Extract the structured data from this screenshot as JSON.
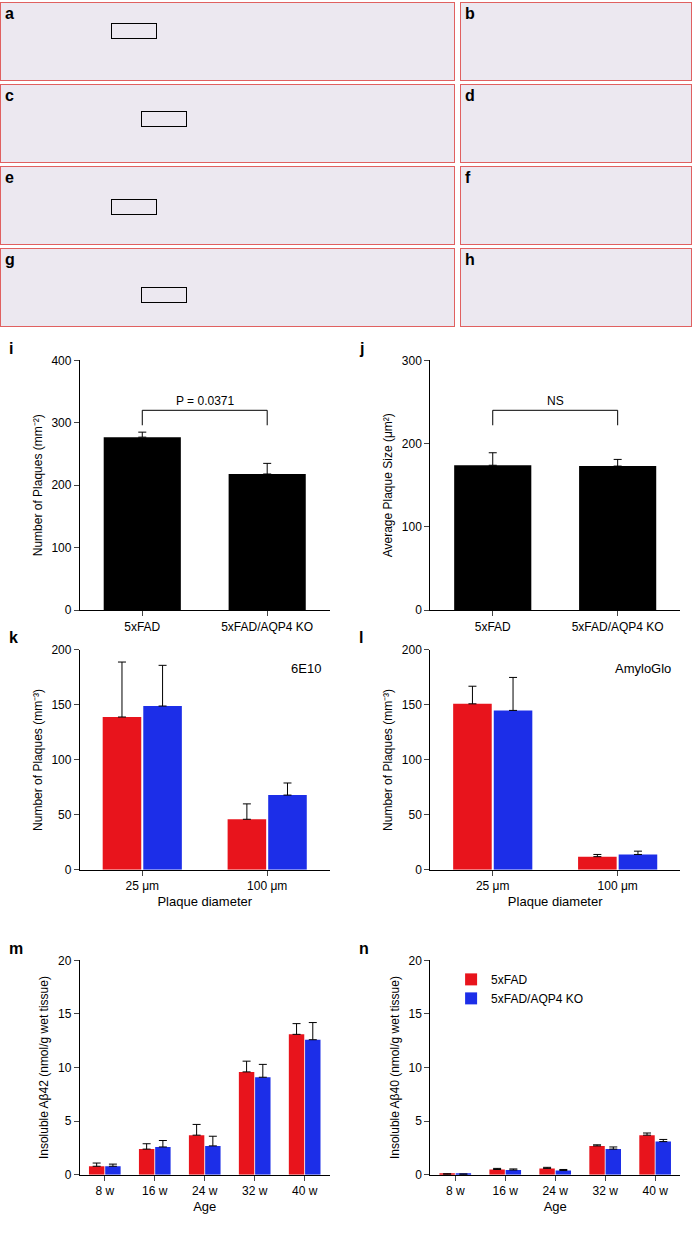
{
  "image_panels": [
    "a",
    "b",
    "c",
    "d",
    "e",
    "f",
    "g",
    "h"
  ],
  "chart_data": [
    {
      "type": "bar",
      "title": "i",
      "categories": [
        "5xFAD",
        "5xFAD/AQP4 KO"
      ],
      "values": [
        277,
        218
      ],
      "errors": [
        8,
        17
      ],
      "color": "#000000",
      "ylabel": "Number of Plaques (mm⁻²)",
      "ylim": [
        0,
        400
      ],
      "yticks": [
        0,
        100,
        200,
        300,
        400
      ],
      "annotations": [
        {
          "text": "P = 0.0371",
          "between": [
            "5xFAD",
            "5xFAD/AQP4 KO"
          ]
        }
      ]
    },
    {
      "type": "bar",
      "title": "j",
      "categories": [
        "5xFAD",
        "5xFAD/AQP4 KO"
      ],
      "values": [
        174,
        173
      ],
      "errors": [
        15,
        8
      ],
      "color": "#000000",
      "ylabel": "Average Plaque Size (μm²)",
      "ylim": [
        0,
        300
      ],
      "yticks": [
        0,
        100,
        200,
        300
      ],
      "annotations": [
        {
          "text": "NS",
          "between": [
            "5xFAD",
            "5xFAD/AQP4 KO"
          ]
        }
      ]
    },
    {
      "type": "bar",
      "title": "k",
      "categories": [
        "25 μm",
        "100 μm"
      ],
      "series": [
        {
          "name": "5xFAD",
          "color": "#e8141c",
          "values": [
            139,
            46
          ],
          "errors": [
            50,
            14
          ]
        },
        {
          "name": "5xFAD/AQP4 KO",
          "color": "#1c2ee8",
          "values": [
            149,
            68
          ],
          "errors": [
            37,
            11
          ]
        }
      ],
      "xlabel": "Plaque diameter",
      "ylabel": "Number of Plaques (mm⁻³)",
      "ylim": [
        0,
        200
      ],
      "yticks": [
        0,
        50,
        100,
        150,
        200
      ],
      "annotations": [
        {
          "text": "6E10"
        }
      ]
    },
    {
      "type": "bar",
      "title": "l",
      "categories": [
        "25 μm",
        "100 μm"
      ],
      "series": [
        {
          "name": "5xFAD",
          "color": "#e8141c",
          "values": [
            151,
            12
          ],
          "errors": [
            16,
            2
          ]
        },
        {
          "name": "5xFAD/AQP4 KO",
          "color": "#1c2ee8",
          "values": [
            145,
            14
          ],
          "errors": [
            30,
            3
          ]
        }
      ],
      "xlabel": "Plaque diameter",
      "ylabel": "Number of Plaques (mm⁻³)",
      "ylim": [
        0,
        200
      ],
      "yticks": [
        0,
        50,
        100,
        150,
        200
      ],
      "annotations": [
        {
          "text": "AmyloGlo"
        }
      ]
    },
    {
      "type": "bar",
      "title": "m",
      "categories": [
        "8 w",
        "16 w",
        "24 w",
        "32 w",
        "40 w"
      ],
      "series": [
        {
          "name": "5xFAD",
          "color": "#e8141c",
          "values": [
            0.8,
            2.4,
            3.7,
            9.6,
            13.1
          ],
          "errors": [
            0.3,
            0.5,
            1.0,
            1.0,
            1.0
          ]
        },
        {
          "name": "5xFAD/AQP4 KO",
          "color": "#1c2ee8",
          "values": [
            0.8,
            2.6,
            2.7,
            9.1,
            12.6
          ],
          "errors": [
            0.2,
            0.6,
            0.9,
            1.2,
            1.6
          ]
        }
      ],
      "xlabel": "Age",
      "ylabel": "Insoluble Aβ42 (nmol/g wet tissue)",
      "ylim": [
        0,
        20
      ],
      "yticks": [
        0,
        5,
        10,
        15,
        20
      ]
    },
    {
      "type": "bar",
      "title": "n",
      "categories": [
        "8 w",
        "16 w",
        "24 w",
        "32 w",
        "40 w"
      ],
      "series": [
        {
          "name": "5xFAD",
          "color": "#e8141c",
          "values": [
            0.05,
            0.5,
            0.6,
            2.7,
            3.7
          ],
          "errors": [
            0.05,
            0.1,
            0.1,
            0.1,
            0.2
          ]
        },
        {
          "name": "5xFAD/AQP4 KO",
          "color": "#1c2ee8",
          "values": [
            0.05,
            0.45,
            0.4,
            2.4,
            3.1
          ],
          "errors": [
            0.03,
            0.1,
            0.1,
            0.2,
            0.2
          ]
        }
      ],
      "xlabel": "Age",
      "ylabel": "Insoluble Aβ40 (nmol/g wet tissue)",
      "ylim": [
        0,
        20
      ],
      "yticks": [
        0,
        5,
        10,
        15,
        20
      ],
      "legend": "top left"
    }
  ]
}
